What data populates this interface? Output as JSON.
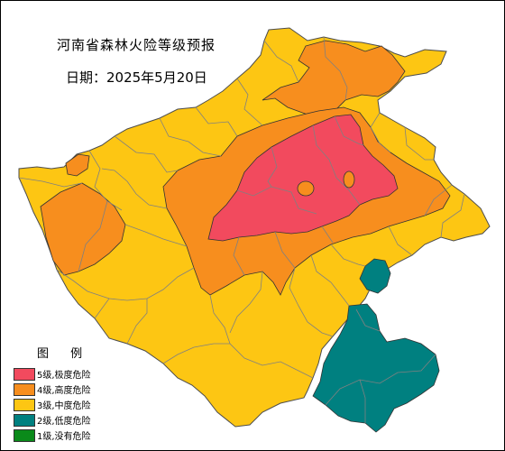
{
  "title": "河南省森林火险等级预报",
  "date": "日期：2025年5月20日",
  "legend": {
    "title": "图 例",
    "items": [
      {
        "label": "5级,极度危险",
        "color": "#f24a5e",
        "icon": "level-5-swatch"
      },
      {
        "label": "4级,高度危险",
        "color": "#f78e1e",
        "icon": "level-4-swatch"
      },
      {
        "label": "3级,中度危险",
        "color": "#fdc613",
        "icon": "level-3-swatch"
      },
      {
        "label": "2级,低度危险",
        "color": "#008080",
        "icon": "level-2-swatch"
      },
      {
        "label": "1级,没有危险",
        "color": "#0a8a1a",
        "icon": "level-1-swatch"
      }
    ]
  },
  "map": {
    "province": "河南省",
    "zones_present": [
      "5级",
      "4级",
      "3级",
      "2级"
    ],
    "border_color": "#808080"
  }
}
